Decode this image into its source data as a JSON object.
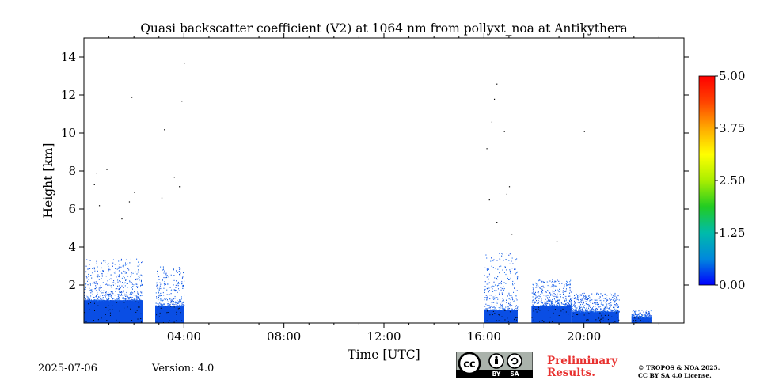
{
  "chart_data": {
    "type": "heatmap",
    "title": "Quasi backscatter coefficient (V2) at 1064 nm from pollyxt_noa at Antikythera",
    "xlabel": "Time [UTC]",
    "ylabel": "Height [km]",
    "xlim_hours": [
      0,
      24
    ],
    "ylim_km": [
      0,
      15
    ],
    "x_ticks": [
      {
        "value": 4,
        "label": "04:00"
      },
      {
        "value": 8,
        "label": "08:00"
      },
      {
        "value": 12,
        "label": "12:00"
      },
      {
        "value": 16,
        "label": "16:00"
      },
      {
        "value": 20,
        "label": "20:00"
      }
    ],
    "y_ticks": [
      {
        "value": 2,
        "label": "2"
      },
      {
        "value": 4,
        "label": "4"
      },
      {
        "value": 6,
        "label": "6"
      },
      {
        "value": 8,
        "label": "8"
      },
      {
        "value": 10,
        "label": "10"
      },
      {
        "value": 12,
        "label": "12"
      },
      {
        "value": 14,
        "label": "14"
      }
    ],
    "colorbar": {
      "min": 0.0,
      "max": 5.0,
      "ticks": [
        "0.00",
        "1.25",
        "2.50",
        "3.75",
        "5.00"
      ],
      "colors": [
        "#0000ff",
        "#0088dd",
        "#00bbaa",
        "#22cc22",
        "#aaee00",
        "#ffff00",
        "#ffaa00",
        "#ff4400",
        "#ff0000"
      ]
    },
    "data_segments": [
      {
        "start_h": 0.0,
        "end_h": 2.35,
        "dense_top_km": 1.2,
        "sparse_top_km": 3.4
      },
      {
        "start_h": 2.85,
        "end_h": 4.0,
        "dense_top_km": 0.9,
        "sparse_top_km": 3.0
      },
      {
        "start_h": 16.0,
        "end_h": 17.35,
        "dense_top_km": 0.7,
        "sparse_top_km": 3.7
      },
      {
        "start_h": 17.9,
        "end_h": 19.5,
        "dense_top_km": 0.9,
        "sparse_top_km": 2.3
      },
      {
        "start_h": 19.5,
        "end_h": 21.4,
        "dense_top_km": 0.6,
        "sparse_top_km": 1.6
      },
      {
        "start_h": 21.9,
        "end_h": 22.7,
        "dense_top_km": 0.3,
        "sparse_top_km": 0.7
      }
    ],
    "scattered_points": [
      {
        "t": 0.5,
        "h": 7.9
      },
      {
        "t": 0.9,
        "h": 8.1
      },
      {
        "t": 1.9,
        "h": 11.9
      },
      {
        "t": 3.2,
        "h": 10.2
      },
      {
        "t": 4.0,
        "h": 13.7
      },
      {
        "t": 3.9,
        "h": 11.7
      },
      {
        "t": 3.6,
        "h": 7.7
      },
      {
        "t": 3.8,
        "h": 7.2
      },
      {
        "t": 2.0,
        "h": 6.9
      },
      {
        "t": 1.8,
        "h": 6.4
      },
      {
        "t": 0.6,
        "h": 6.2
      },
      {
        "t": 0.4,
        "h": 7.3
      },
      {
        "t": 16.1,
        "h": 9.2
      },
      {
        "t": 16.5,
        "h": 12.6
      },
      {
        "t": 16.4,
        "h": 11.8
      },
      {
        "t": 16.3,
        "h": 10.6
      },
      {
        "t": 16.8,
        "h": 10.1
      },
      {
        "t": 17.0,
        "h": 7.2
      },
      {
        "t": 16.9,
        "h": 6.8
      },
      {
        "t": 16.2,
        "h": 6.5
      },
      {
        "t": 16.5,
        "h": 5.3
      },
      {
        "t": 17.1,
        "h": 4.7
      },
      {
        "t": 18.9,
        "h": 4.3
      },
      {
        "t": 20.0,
        "h": 10.1
      },
      {
        "t": 3.1,
        "h": 6.6
      },
      {
        "t": 1.5,
        "h": 5.5
      }
    ]
  },
  "footer": {
    "date": "2025-07-06",
    "version": "Version: 4.0",
    "preliminary_line1": "Preliminary",
    "preliminary_line2": "Results.",
    "copyright_line1": "© TROPOS & NOA 2025.",
    "copyright_line2": "CC BY SA 4.0 License.",
    "cc_badge": {
      "cc": "cc",
      "by": "BY",
      "sa": "SA"
    }
  }
}
